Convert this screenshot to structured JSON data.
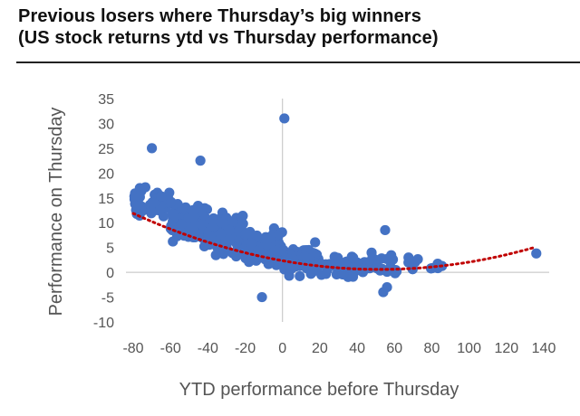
{
  "title": {
    "line1": "Previous losers where Thursday’s big winners",
    "line2": "(US stock returns ytd vs Thursday performance)"
  },
  "colors": {
    "points": "#4472C4",
    "trend": "#C00000",
    "axis": "#BFBFBF",
    "text": "#595959"
  },
  "chart_data": {
    "type": "scatter",
    "title": "Previous losers where Thursday’s big winners (US stock returns ytd vs Thursday performance)",
    "xlabel": "YTD performance before Thursday",
    "ylabel": "Performance on Thursday",
    "xlim": [
      -80,
      140
    ],
    "ylim": [
      -10,
      35
    ],
    "xticks": [
      -80,
      -60,
      -40,
      -20,
      0,
      20,
      40,
      60,
      80,
      100,
      120,
      140
    ],
    "yticks": [
      -10,
      -5,
      0,
      5,
      10,
      15,
      20,
      25,
      30,
      35
    ],
    "grid": false,
    "trendline": {
      "kind": "polynomial",
      "style": "dotted",
      "coefficients": [
        2.34,
        -0.0674,
        0.000646
      ],
      "x_range": [
        -80,
        135
      ]
    },
    "notable_points": [
      {
        "x": 1,
        "y": 31
      },
      {
        "x": -70,
        "y": 25
      },
      {
        "x": -44,
        "y": 22.5
      },
      {
        "x": 136,
        "y": 3.8
      },
      {
        "x": -11,
        "y": -5
      },
      {
        "x": 54,
        "y": -4
      },
      {
        "x": 56,
        "y": -3
      },
      {
        "x": 55,
        "y": 8.5
      }
    ],
    "point_cloud": [
      {
        "x_range": [
          -80,
          -60
        ],
        "count": 50,
        "y_center": 13.5,
        "y_spread": 4
      },
      {
        "x_range": [
          -60,
          -40
        ],
        "count": 90,
        "y_center": 10.5,
        "y_spread": 4
      },
      {
        "x_range": [
          -40,
          -20
        ],
        "count": 120,
        "y_center": 8,
        "y_spread": 4
      },
      {
        "x_range": [
          -20,
          0
        ],
        "count": 120,
        "y_center": 5,
        "y_spread": 3.5
      },
      {
        "x_range": [
          0,
          20
        ],
        "count": 70,
        "y_center": 2.5,
        "y_spread": 3
      },
      {
        "x_range": [
          20,
          40
        ],
        "count": 40,
        "y_center": 1.5,
        "y_spread": 2.5
      },
      {
        "x_range": [
          40,
          60
        ],
        "count": 20,
        "y_center": 1.5,
        "y_spread": 2
      },
      {
        "x_range": [
          60,
          90
        ],
        "count": 14,
        "y_center": 1.5,
        "y_spread": 1.8
      }
    ]
  }
}
